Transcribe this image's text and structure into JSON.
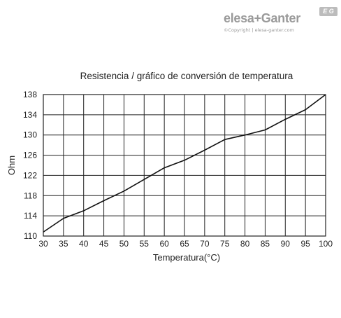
{
  "logo": {
    "brand": "elesa+Ganter",
    "badge": "E G",
    "copyright": "©Copyright | elesa-ganter.com"
  },
  "chart_data": {
    "type": "line",
    "title": "Resistencia / gráfico de conversión de temperatura",
    "xlabel": "Temperatura(°C)",
    "ylabel": "Ohm",
    "xlim": [
      30,
      100
    ],
    "ylim": [
      110,
      138
    ],
    "xticks": [
      30,
      35,
      40,
      45,
      50,
      55,
      60,
      65,
      70,
      75,
      80,
      85,
      90,
      95,
      100
    ],
    "yticks": [
      110,
      114,
      118,
      122,
      126,
      130,
      134,
      138
    ],
    "grid": true,
    "series": [
      {
        "x": [
          30,
          35,
          40,
          45,
          50,
          55,
          60,
          65,
          70,
          75,
          80,
          85,
          90,
          95,
          100
        ],
        "y": [
          110.8,
          113.5,
          115.0,
          117.0,
          118.9,
          121.2,
          123.5,
          125.0,
          127.0,
          129.1,
          130.0,
          131.0,
          133.1,
          135.0,
          138.0
        ]
      }
    ],
    "line_color": "#111111",
    "grid_color": "#222222"
  }
}
